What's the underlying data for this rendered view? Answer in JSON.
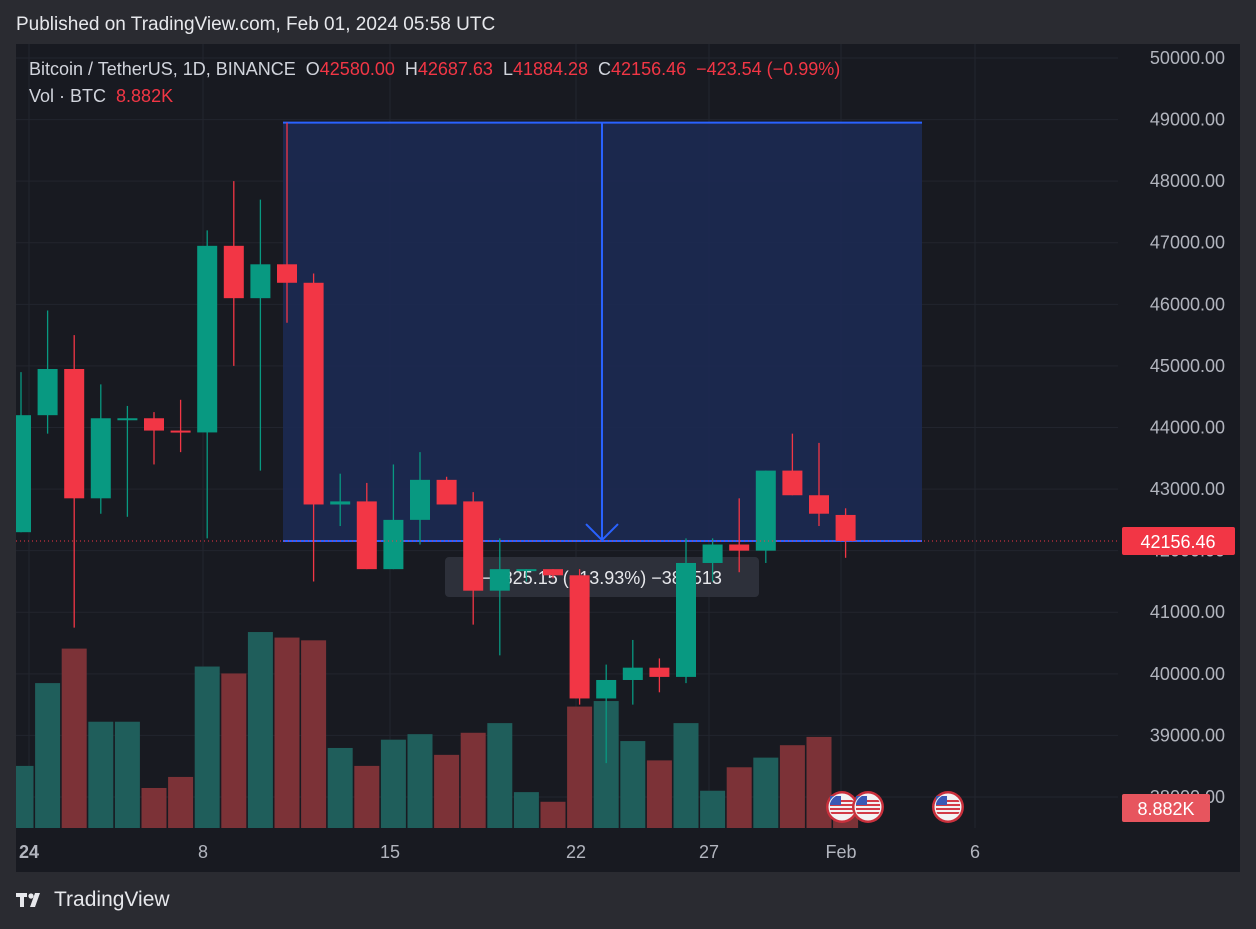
{
  "header": {
    "published": "Published on TradingView.com, Feb 01, 2024 05:58 UTC"
  },
  "legend": {
    "symbol": "Bitcoin / TetherUS, 1D, BINANCE",
    "open_label": "O",
    "open": "42580.00",
    "high_label": "H",
    "high": "42687.63",
    "low_label": "L",
    "low": "41884.28",
    "close_label": "C",
    "close": "42156.46",
    "change": "−423.54 (−0.99%)",
    "vol_label": "Vol · BTC",
    "vol_value": "8.882K"
  },
  "footer": {
    "brand": "TradingView"
  },
  "colors": {
    "up": "#089981",
    "down": "#f23645",
    "up_vol": "#1f5e5b",
    "down_vol": "#7c3237",
    "measure": "#2962ff",
    "measure_fill": "#1c2a52",
    "badge": "#f23645"
  },
  "chart_data": {
    "type": "candlestick",
    "y_range": [
      37600,
      50300
    ],
    "y_ticks": [
      "50000.00",
      "49000.00",
      "48000.00",
      "47000.00",
      "46000.00",
      "45000.00",
      "44000.00",
      "43000.00",
      "42000.00",
      "41000.00",
      "40000.00",
      "39000.00",
      "38000.00"
    ],
    "x_ticks": [
      "24",
      "8",
      "15",
      "22",
      "27",
      "Feb",
      "6"
    ],
    "last_price_label": "42156.46",
    "volume_label": "8.882K",
    "candles": [
      {
        "o": 42300,
        "h": 44900,
        "l": 42300,
        "c": 44200
      },
      {
        "o": 44200,
        "h": 45900,
        "l": 43900,
        "c": 44950
      },
      {
        "o": 44950,
        "h": 45500,
        "l": 40750,
        "c": 42850
      },
      {
        "o": 42850,
        "h": 44700,
        "l": 42600,
        "c": 44150
      },
      {
        "o": 44150,
        "h": 44350,
        "l": 42550,
        "c": 44150
      },
      {
        "o": 44150,
        "h": 44250,
        "l": 43400,
        "c": 43950
      },
      {
        "o": 43950,
        "h": 44450,
        "l": 43600,
        "c": 43920
      },
      {
        "o": 43920,
        "h": 47200,
        "l": 42200,
        "c": 46950
      },
      {
        "o": 46950,
        "h": 48000,
        "l": 45000,
        "c": 46100
      },
      {
        "o": 46100,
        "h": 47700,
        "l": 43300,
        "c": 46650
      },
      {
        "o": 46650,
        "h": 48950,
        "l": 45700,
        "c": 46350
      },
      {
        "o": 46350,
        "h": 46500,
        "l": 41500,
        "c": 42750
      },
      {
        "o": 42750,
        "h": 43250,
        "l": 42400,
        "c": 42800
      },
      {
        "o": 42800,
        "h": 43100,
        "l": 41700,
        "c": 41700
      },
      {
        "o": 41700,
        "h": 43400,
        "l": 41700,
        "c": 42500
      },
      {
        "o": 42500,
        "h": 43600,
        "l": 42100,
        "c": 43150
      },
      {
        "o": 43150,
        "h": 43200,
        "l": 42800,
        "c": 42750
      },
      {
        "o": 42800,
        "h": 42950,
        "l": 40800,
        "c": 41350
      },
      {
        "o": 41350,
        "h": 42200,
        "l": 40300,
        "c": 41700
      },
      {
        "o": 41700,
        "h": 41700,
        "l": 41500,
        "c": 41700
      },
      {
        "o": 41700,
        "h": 41700,
        "l": 41550,
        "c": 41600
      },
      {
        "o": 41600,
        "h": 41700,
        "l": 39500,
        "c": 39600
      },
      {
        "o": 39600,
        "h": 40150,
        "l": 38550,
        "c": 39900
      },
      {
        "o": 39900,
        "h": 40550,
        "l": 39500,
        "c": 40100
      },
      {
        "o": 40100,
        "h": 40250,
        "l": 39700,
        "c": 39950
      },
      {
        "o": 39950,
        "h": 42200,
        "l": 39850,
        "c": 41800
      },
      {
        "o": 41800,
        "h": 42200,
        "l": 41500,
        "c": 42100
      },
      {
        "o": 42100,
        "h": 42850,
        "l": 41650,
        "c": 42000
      },
      {
        "o": 42000,
        "h": 43300,
        "l": 41800,
        "c": 43300
      },
      {
        "o": 43300,
        "h": 43900,
        "l": 42900,
        "c": 42900
      },
      {
        "o": 42900,
        "h": 43750,
        "l": 42400,
        "c": 42600
      },
      {
        "o": 42580,
        "h": 42688,
        "l": 41884,
        "c": 42156
      }
    ],
    "volumes": [
      0.45,
      1.05,
      1.3,
      0.77,
      0.77,
      0.29,
      0.37,
      1.17,
      1.12,
      1.42,
      1.38,
      1.36,
      0.58,
      0.45,
      0.64,
      0.68,
      0.53,
      0.69,
      0.76,
      0.26,
      0.19,
      0.88,
      0.92,
      0.63,
      0.49,
      0.76,
      0.27,
      0.44,
      0.51,
      0.6,
      0.66,
      0.1
    ],
    "measure": {
      "label": "−6825.15 (−13.93%) −382513",
      "top": 48950,
      "bottom": 42156.46
    },
    "event_markers": 3
  }
}
